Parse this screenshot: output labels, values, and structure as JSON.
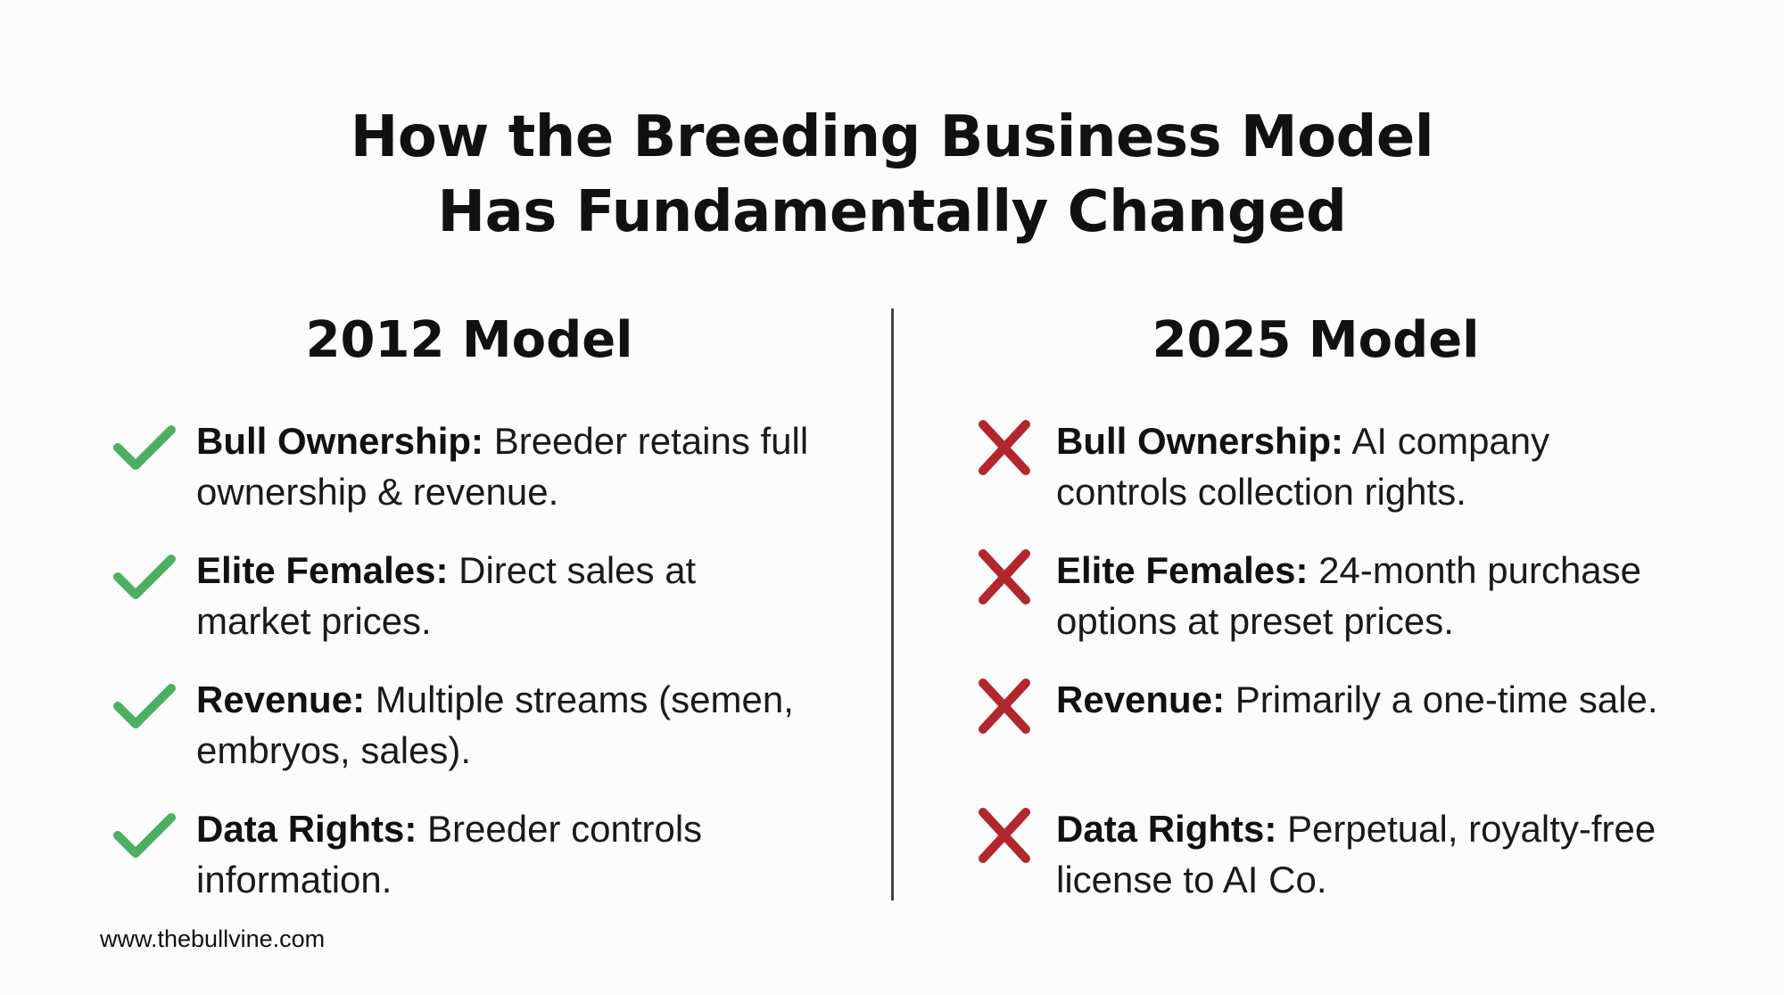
{
  "title": {
    "line1": "How the Breeding Business Model",
    "line2": "Has Fundamentally Changed"
  },
  "columns": [
    {
      "heading": "2012 Model",
      "icon": "check-icon",
      "icon_color": "#4caf61",
      "items": [
        {
          "label": "Bull Ownership:",
          "text": "Breeder retains full ownership & revenue."
        },
        {
          "label": "Elite Females:",
          "text": "Direct sales at market prices."
        },
        {
          "label": "Revenue:",
          "text": "Multiple streams (semen, embryos, sales)."
        },
        {
          "label": "Data Rights:",
          "text": "Breeder controls information."
        }
      ]
    },
    {
      "heading": "2025 Model",
      "icon": "cross-icon",
      "icon_color": "#b3262e",
      "items": [
        {
          "label": "Bull Ownership:",
          "text": "AI company controls collection rights."
        },
        {
          "label": "Elite Females:",
          "text": "24-month purchase options at preset prices."
        },
        {
          "label": "Revenue:",
          "text": "Primarily a one-time sale."
        },
        {
          "label": "Data Rights:",
          "text": "Perpetual, royalty-free license to AI Co."
        }
      ]
    }
  ],
  "footer": {
    "url": "www.thebullvine.com"
  }
}
